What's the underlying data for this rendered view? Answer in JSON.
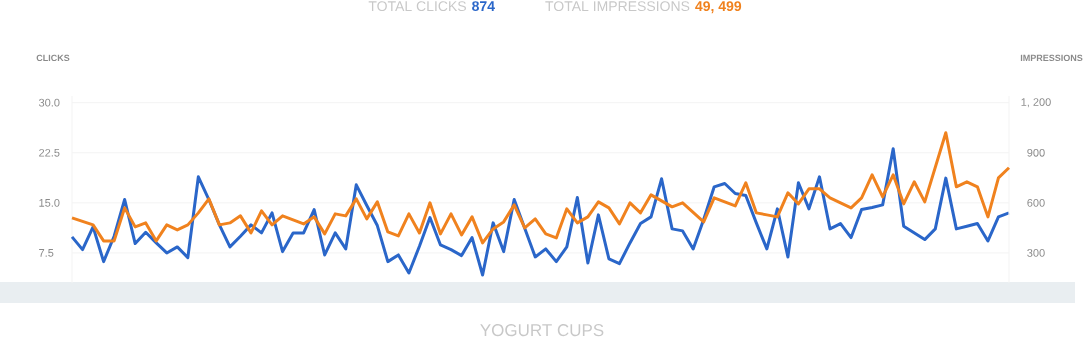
{
  "chart_data": {
    "type": "line",
    "annotations": [
      "TOTAL CLICKS",
      "874",
      "TOTAL IMPRESSIONS",
      "49, 499"
    ],
    "xlabel": "YOGURT CUPS",
    "ylabel": "CLICKS",
    "y2label": "IMPRESSIONS",
    "categories": [
      null,
      null,
      null,
      null,
      null,
      null,
      null,
      null,
      null,
      null,
      null,
      null,
      null,
      null,
      null,
      null,
      null,
      null,
      null,
      null,
      null,
      null,
      null,
      null,
      null,
      null,
      null,
      null,
      null,
      null,
      null,
      null,
      null,
      null,
      null,
      null,
      null,
      null,
      null,
      null,
      null,
      null,
      null,
      null,
      null,
      null,
      null,
      null,
      null,
      null,
      null,
      null,
      null,
      null,
      null,
      null,
      null,
      null,
      null,
      null,
      null,
      null,
      null,
      null,
      null,
      null,
      null,
      null,
      null,
      null,
      null,
      null,
      null,
      null,
      null,
      null,
      null,
      null,
      null,
      null,
      null,
      null,
      null,
      null,
      null,
      null,
      null,
      null,
      null,
      null
    ],
    "series": [
      {
        "color": "#2a66c9",
        "values": [
          9.9,
          8.0,
          11.4,
          6.2,
          10,
          15.5,
          8.9,
          10.6,
          9.0,
          7.5,
          8.4,
          6.8,
          18.9,
          15.5,
          11.7,
          8.4,
          10,
          11.7,
          10.5,
          13.5,
          7.7,
          10.5,
          10.5,
          14,
          7.2,
          10.5,
          8.1,
          17.7,
          14.6,
          11.6,
          6.2,
          7.2,
          4.5,
          8.5,
          12.8,
          8.7,
          8.0,
          7.1,
          9.8,
          4.2,
          12,
          7.7,
          15.5,
          11.2,
          6.9,
          8.1,
          6.2,
          8.4,
          15.8,
          6.0,
          13.2,
          6.6,
          5.9,
          9.0,
          11.9,
          12.9,
          18.6,
          11.1,
          10.8,
          8.1,
          12.5,
          17.4,
          17.9,
          16.4,
          16.1,
          12,
          8.1,
          14.1,
          6.9,
          18,
          14.1,
          18.9,
          11.1,
          11.9,
          9.8,
          14,
          14.3,
          14.7,
          23.1,
          11.5,
          10.5,
          9.5,
          11.1,
          18.7,
          11.1,
          11.5,
          11.9,
          9.3,
          12.9,
          13.5
        ]
      },
      {
        "color": "#f0821e",
        "axis": "y2",
        "values": [
          510,
          489,
          468,
          372,
          372,
          570,
          456,
          480,
          372,
          468,
          438,
          468,
          540,
          624,
          468,
          480,
          522,
          420,
          552,
          468,
          522,
          498,
          474,
          516,
          414,
          534,
          522,
          624,
          504,
          606,
          426,
          402,
          534,
          420,
          600,
          414,
          534,
          408,
          516,
          360,
          444,
          486,
          588,
          450,
          504,
          414,
          390,
          564,
          480,
          516,
          606,
          570,
          474,
          600,
          540,
          648,
          612,
          576,
          600,
          543,
          486,
          630,
          606,
          582,
          720,
          540,
          528,
          516,
          660,
          594,
          684,
          684,
          630,
          600,
          570,
          630,
          768,
          636,
          768,
          594,
          726,
          606,
          813,
          1020,
          696,
          726,
          696,
          516,
          750,
          810
        ]
      }
    ],
    "ylim": [
      3,
      31
    ],
    "yticks": [
      {
        "value": 7.5,
        "label": "7.5"
      },
      {
        "value": 15,
        "label": "15.0"
      },
      {
        "value": 22.5,
        "label": "22.5"
      },
      {
        "value": 30,
        "label": "30.0"
      }
    ],
    "y2lim": [
      120,
      1240
    ],
    "y2ticks": [
      300,
      600,
      900,
      {
        "value": 1200,
        "label": "1, 200"
      }
    ],
    "grid": "y",
    "marker": "none",
    "line_style": "solid",
    "tick_labels": "y"
  }
}
